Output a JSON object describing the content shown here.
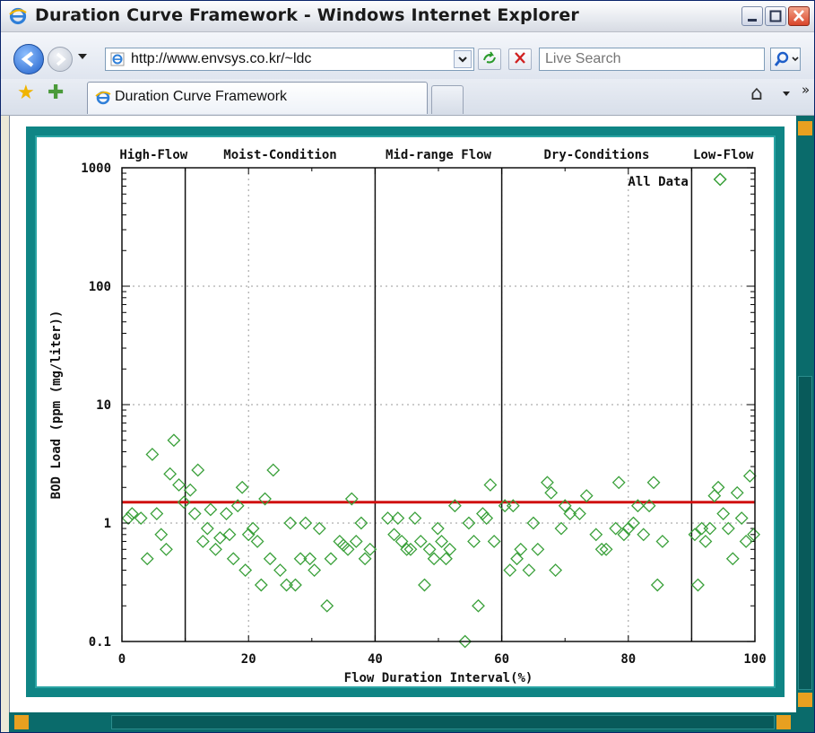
{
  "window": {
    "title": "Duration Curve Framework - Windows Internet Explorer"
  },
  "address_bar": {
    "url": "http://www.envsys.co.kr/~ldc",
    "search_placeholder": "Live Search"
  },
  "tabs": [
    {
      "label": "Duration Curve Framework"
    }
  ],
  "icons": [
    "ie-icon",
    "back-icon",
    "forward-icon",
    "refresh-icon",
    "stop-icon",
    "search-icon",
    "favorites-star-icon",
    "add-favorites-icon",
    "home-icon",
    "minimize-icon",
    "maximize-icon",
    "close-icon"
  ],
  "chart_data": {
    "type": "scatter",
    "title": "",
    "legend": "All Data",
    "legend_placement": "top-right",
    "xlabel": "Flow Duration Interval(%)",
    "ylabel": "BOD Load (ppm (mg/liter))",
    "xlim": [
      0,
      100
    ],
    "ylim": [
      0.1,
      1000
    ],
    "yscale": "log",
    "x_ticks": [
      0,
      20,
      40,
      60,
      80,
      100
    ],
    "x_tick_labels": [
      "0",
      "20",
      "40",
      "60",
      "80",
      "100"
    ],
    "y_ticks": [
      0.1,
      1,
      10,
      100,
      1000
    ],
    "y_tick_labels": [
      "0.1",
      "1",
      "10",
      "100",
      "1000"
    ],
    "grid": "dotted",
    "zones": [
      {
        "label": "High-Flow",
        "from": 0,
        "to": 10
      },
      {
        "label": "Moist-Condition",
        "from": 10,
        "to": 40
      },
      {
        "label": "Mid-range Flow",
        "from": 40,
        "to": 60
      },
      {
        "label": "Dry-Conditions",
        "from": 60,
        "to": 90
      },
      {
        "label": "Low-Flow",
        "from": 90,
        "to": 100
      }
    ],
    "zone_boundaries": [
      10,
      40,
      60,
      90
    ],
    "criterion_line": {
      "y": 1.5,
      "color": "#d01010"
    },
    "marker_color": "#3aa03a",
    "series": [
      {
        "name": "All Data",
        "points": [
          [
            1,
            1.1
          ],
          [
            1.6,
            1.2
          ],
          [
            3,
            1.1
          ],
          [
            4,
            0.5
          ],
          [
            4.8,
            3.8
          ],
          [
            5.5,
            1.2
          ],
          [
            6.2,
            0.8
          ],
          [
            7,
            0.6
          ],
          [
            7.6,
            2.6
          ],
          [
            8.2,
            5.0
          ],
          [
            9,
            2.1
          ],
          [
            9.8,
            1.5
          ],
          [
            10.8,
            1.9
          ],
          [
            11.5,
            1.2
          ],
          [
            12,
            2.8
          ],
          [
            12.8,
            0.7
          ],
          [
            13.5,
            0.9
          ],
          [
            14,
            1.3
          ],
          [
            14.8,
            0.6
          ],
          [
            15.5,
            0.75
          ],
          [
            16.5,
            1.2
          ],
          [
            17,
            0.8
          ],
          [
            17.6,
            0.5
          ],
          [
            18.3,
            1.4
          ],
          [
            19,
            2.0
          ],
          [
            19.5,
            0.4
          ],
          [
            20,
            0.8
          ],
          [
            20.7,
            0.9
          ],
          [
            21.4,
            0.7
          ],
          [
            22,
            0.3
          ],
          [
            22.6,
            1.6
          ],
          [
            23.4,
            0.5
          ],
          [
            23.9,
            2.8
          ],
          [
            25,
            0.4
          ],
          [
            26,
            0.3
          ],
          [
            26.6,
            1.0
          ],
          [
            27.4,
            0.3
          ],
          [
            28.2,
            0.5
          ],
          [
            29,
            1.0
          ],
          [
            29.7,
            0.5
          ],
          [
            30.4,
            0.4
          ],
          [
            31.2,
            0.9
          ],
          [
            32.4,
            0.2
          ],
          [
            33,
            0.5
          ],
          [
            34.4,
            0.7
          ],
          [
            35,
            0.65
          ],
          [
            35.7,
            0.6
          ],
          [
            36.3,
            1.6
          ],
          [
            37,
            0.7
          ],
          [
            37.8,
            1.0
          ],
          [
            38.4,
            0.5
          ],
          [
            39.2,
            0.6
          ],
          [
            42,
            1.1
          ],
          [
            43,
            0.8
          ],
          [
            43.6,
            1.1
          ],
          [
            44.2,
            0.7
          ],
          [
            45,
            0.6
          ],
          [
            45.6,
            0.6
          ],
          [
            46.3,
            1.1
          ],
          [
            47.2,
            0.7
          ],
          [
            47.8,
            0.3
          ],
          [
            48.6,
            0.6
          ],
          [
            49.3,
            0.5
          ],
          [
            49.9,
            0.9
          ],
          [
            50.5,
            0.7
          ],
          [
            51.2,
            0.5
          ],
          [
            51.8,
            0.6
          ],
          [
            52.6,
            1.4
          ],
          [
            54.2,
            0.1
          ],
          [
            54.8,
            1.0
          ],
          [
            55.6,
            0.7
          ],
          [
            56.3,
            0.2
          ],
          [
            57,
            1.2
          ],
          [
            57.6,
            1.1
          ],
          [
            58.2,
            2.1
          ],
          [
            58.8,
            0.7
          ],
          [
            60.5,
            1.4
          ],
          [
            61.3,
            0.4
          ],
          [
            61.8,
            1.4
          ],
          [
            62.4,
            0.5
          ],
          [
            63,
            0.6
          ],
          [
            64.3,
            0.4
          ],
          [
            65,
            1.0
          ],
          [
            65.7,
            0.6
          ],
          [
            67.2,
            2.2
          ],
          [
            67.8,
            1.8
          ],
          [
            68.5,
            0.4
          ],
          [
            69.4,
            0.9
          ],
          [
            70,
            1.4
          ],
          [
            70.8,
            1.2
          ],
          [
            72.3,
            1.2
          ],
          [
            73.4,
            1.7
          ],
          [
            74.9,
            0.8
          ],
          [
            75.8,
            0.6
          ],
          [
            76.5,
            0.6
          ],
          [
            78,
            0.9
          ],
          [
            78.5,
            2.2
          ],
          [
            79.3,
            0.8
          ],
          [
            80,
            0.9
          ],
          [
            80.8,
            1.0
          ],
          [
            81.5,
            1.4
          ],
          [
            82.4,
            0.8
          ],
          [
            83.3,
            1.4
          ],
          [
            84,
            2.2
          ],
          [
            84.6,
            0.3
          ],
          [
            85.4,
            0.7
          ],
          [
            90.5,
            0.8
          ],
          [
            91,
            0.3
          ],
          [
            91.6,
            0.9
          ],
          [
            92.2,
            0.7
          ],
          [
            92.9,
            0.9
          ],
          [
            93.6,
            1.7
          ],
          [
            94.2,
            2.0
          ],
          [
            94.5,
            800
          ],
          [
            95,
            1.2
          ],
          [
            95.8,
            0.9
          ],
          [
            96.5,
            0.5
          ],
          [
            97.2,
            1.8
          ],
          [
            97.9,
            1.1
          ],
          [
            98.6,
            0.7
          ],
          [
            99.2,
            2.5
          ],
          [
            99.8,
            0.8
          ]
        ]
      }
    ]
  }
}
